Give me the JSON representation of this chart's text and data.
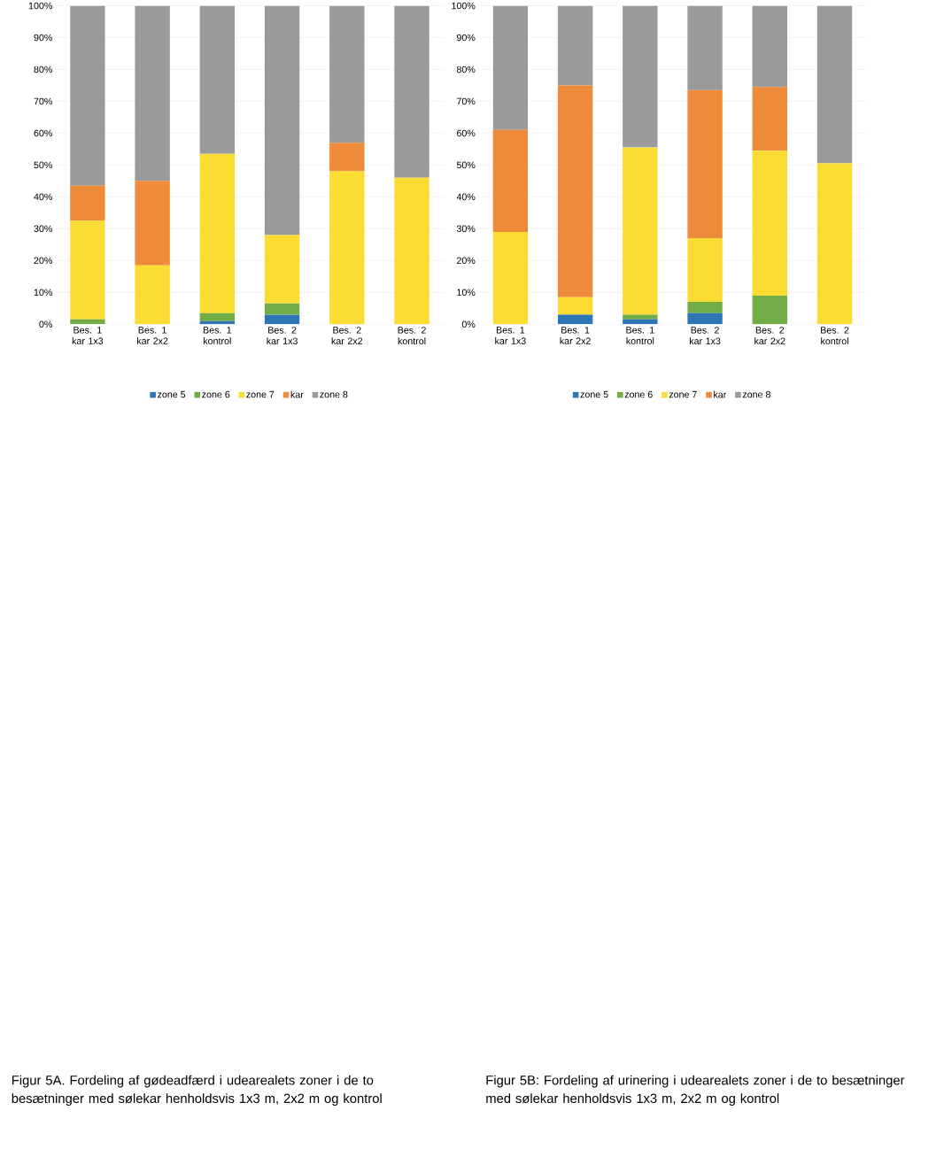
{
  "chart_data": [
    {
      "type": "bar",
      "stacked": true,
      "grid": "y",
      "legend": "bottom",
      "categories": [
        "Bes. 1 kar 1x3",
        "Bes. 1 kar 2x2",
        "Bes. 1 kontrol",
        "Bes. 2 kar 1x3",
        "Bes. 2 kar 2x2",
        "Bes. 2 kontrol"
      ],
      "ylim": [
        0,
        100
      ],
      "yticks": [
        {
          "value": 0,
          "label": "0%"
        },
        {
          "value": 10,
          "label": "10%"
        },
        {
          "value": 20,
          "label": "20%"
        },
        {
          "value": 30,
          "label": "30%"
        },
        {
          "value": 40,
          "label": "40%"
        },
        {
          "value": 50,
          "label": "50%"
        },
        {
          "value": 60,
          "label": "60%"
        },
        {
          "value": 70,
          "label": "70%"
        },
        {
          "value": 80,
          "label": "80%"
        },
        {
          "value": 90,
          "label": "90%"
        },
        {
          "value": 100,
          "label": "100%"
        }
      ],
      "series": [
        {
          "name": "zone 5",
          "color": "#2e75b6",
          "values": [
            0,
            0,
            1,
            3,
            0,
            0
          ]
        },
        {
          "name": "zone 6",
          "color": "#70ad47",
          "values": [
            1.5,
            0,
            2.5,
            3.5,
            0,
            0
          ]
        },
        {
          "name": "zone 7",
          "color": "#fadc32",
          "values": [
            31,
            18.5,
            50,
            21.5,
            48,
            46
          ]
        },
        {
          "name": "kar",
          "color": "#ed8b3b",
          "values": [
            11,
            26.5,
            0,
            0,
            9,
            0
          ]
        },
        {
          "name": "zone 8",
          "color": "#9a9a9a",
          "values": [
            56.5,
            55,
            46.5,
            72,
            43,
            54
          ]
        }
      ],
      "annotations": [
        "Figur 5A. Fordeling af gødeadfærd i udearealets zoner i de to besætninger med sølekar henholdsvis 1x3 m, 2x2 m og kontrol"
      ]
    },
    {
      "type": "bar",
      "stacked": true,
      "grid": "y",
      "legend": "bottom",
      "categories": [
        "Bes. 1 kar 1x3",
        "Bes. 1 kar 2x2",
        "Bes. 1 kontrol",
        "Bes. 2 kar 1x3",
        "Bes. 2 kar 2x2",
        "Bes. 2 kontrol"
      ],
      "ylim": [
        0,
        100
      ],
      "yticks": [
        {
          "value": 0,
          "label": "0%"
        },
        {
          "value": 10,
          "label": "10%"
        },
        {
          "value": 20,
          "label": "20%"
        },
        {
          "value": 30,
          "label": "30%"
        },
        {
          "value": 40,
          "label": "40%"
        },
        {
          "value": 50,
          "label": "50%"
        },
        {
          "value": 60,
          "label": "60%"
        },
        {
          "value": 70,
          "label": "70%"
        },
        {
          "value": 80,
          "label": "80%"
        },
        {
          "value": 90,
          "label": "90%"
        },
        {
          "value": 100,
          "label": "100%"
        }
      ],
      "series": [
        {
          "name": "zone 5",
          "color": "#2e75b6",
          "values": [
            0,
            3,
            1.5,
            3.5,
            0,
            0
          ]
        },
        {
          "name": "zone 6",
          "color": "#70ad47",
          "values": [
            0,
            0,
            1.5,
            3.5,
            9,
            0
          ]
        },
        {
          "name": "zone 7",
          "color": "#fadc32",
          "values": [
            29,
            5.5,
            52.5,
            20,
            45.5,
            50.5
          ]
        },
        {
          "name": "kar",
          "color": "#ed8b3b",
          "values": [
            32,
            66.5,
            0,
            46.5,
            20,
            0
          ]
        },
        {
          "name": "zone 8",
          "color": "#9a9a9a",
          "values": [
            39,
            25,
            44.5,
            26.5,
            25.5,
            49.5
          ]
        }
      ],
      "annotations": [
        "Figur 5B: Fordeling af urinering i udearealets zoner i de to besætninger med sølekar henholdsvis 1x3 m, 2x2 m og kontrol"
      ]
    }
  ]
}
